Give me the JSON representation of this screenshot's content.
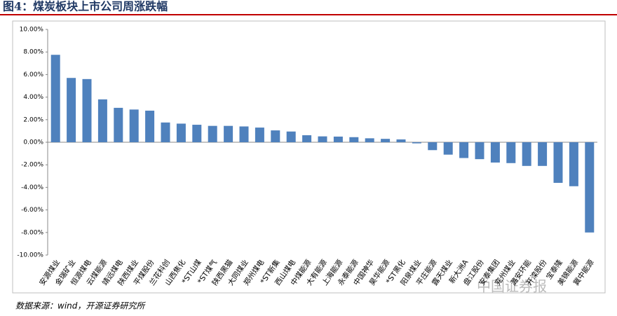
{
  "chart_data": {
    "type": "bar",
    "title": "图4：煤炭板块上市公司周涨跌幅",
    "source": "数据来源：wind，开源证券研究所",
    "watermark": "中国证券报",
    "categories": [
      "安源煤业",
      "金瑞矿业",
      "恒源煤电",
      "云煤能源",
      "靖远煤电",
      "陕西煤业",
      "平煤股份",
      "兰花科创",
      "山西焦化",
      "*ST山煤",
      "*ST煤气",
      "陕西黑猫",
      "大同煤业",
      "郑州煤电",
      "*ST新集",
      "西山煤电",
      "中煤能源",
      "大有能源",
      "上海能源",
      "永泰能源",
      "中国神华",
      "昊华能源",
      "*ST黑化",
      "阳泉煤业",
      "平庄能源",
      "露天煤业",
      "新大洲A",
      "盘江股份",
      "安泰集团",
      "兖州煤业",
      "潞安环能",
      "开滦股份",
      "宝泰隆",
      "美锦能源",
      "冀中能源"
    ],
    "values": [
      7.75,
      5.7,
      5.6,
      3.8,
      3.05,
      2.9,
      2.8,
      1.75,
      1.65,
      1.55,
      1.45,
      1.45,
      1.4,
      1.3,
      1.05,
      0.95,
      0.62,
      0.52,
      0.5,
      0.45,
      0.35,
      0.3,
      0.25,
      -0.1,
      -0.7,
      -1.1,
      -1.4,
      -1.5,
      -1.8,
      -1.85,
      -2.1,
      -2.1,
      -3.6,
      -3.9,
      -8.0
    ],
    "color": "#4f81bd",
    "ylim": [
      -10,
      10
    ],
    "yticks": [
      {
        "value": -10,
        "label": "-10.00%"
      },
      {
        "value": -8,
        "label": "-8.00%"
      },
      {
        "value": -6,
        "label": "-6.00%"
      },
      {
        "value": -4,
        "label": "-4.00%"
      },
      {
        "value": -2,
        "label": "-2.00%"
      },
      {
        "value": 0,
        "label": "0.00%"
      },
      {
        "value": 2,
        "label": "2.00%"
      },
      {
        "value": 4,
        "label": "4.00%"
      },
      {
        "value": 6,
        "label": "6.00%"
      },
      {
        "value": 8,
        "label": "8.00%"
      },
      {
        "value": 10,
        "label": "10.00%"
      }
    ]
  }
}
